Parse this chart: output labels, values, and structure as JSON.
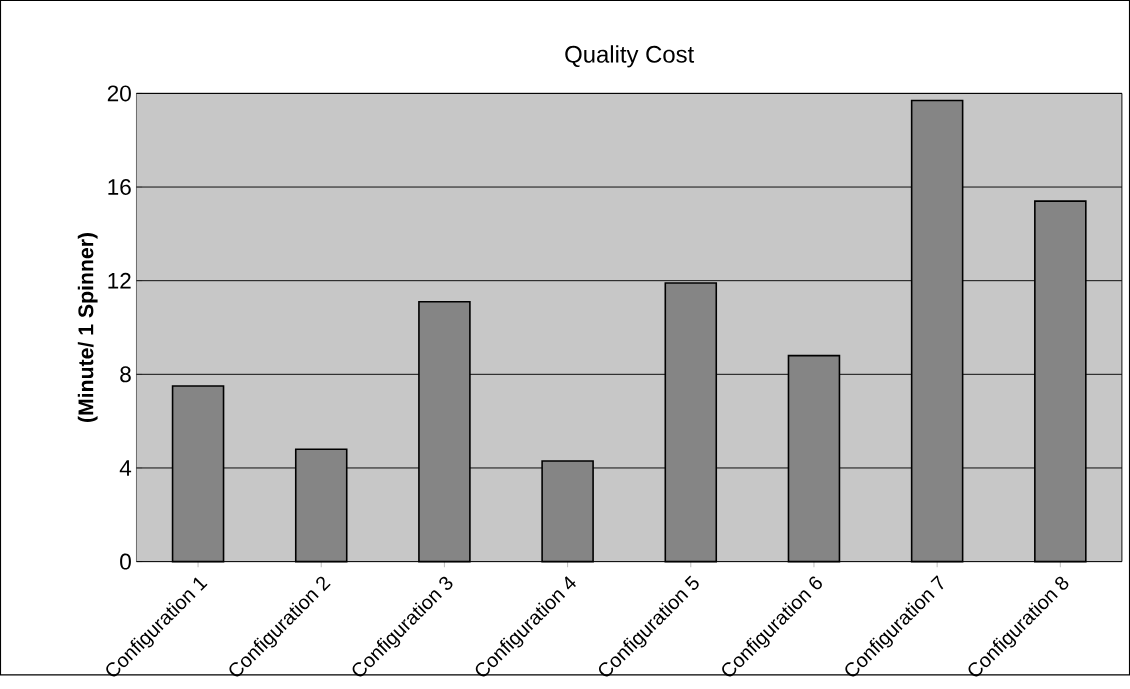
{
  "chart_data": {
    "type": "bar",
    "title": "Quality Cost",
    "ylabel": "(Minute/ 1 Spinner)",
    "categories": [
      "Configuration 1",
      "Configuration 2",
      "Configuration 3",
      "Configuration 4",
      "Configuration 5",
      "Configuration 6",
      "Configuration 7",
      "Configuration 8"
    ],
    "values": [
      7.5,
      4.8,
      11.1,
      4.3,
      11.9,
      8.8,
      19.7,
      15.4
    ],
    "color": "#858585",
    "ylim": [
      0,
      20
    ],
    "yticks": [
      0,
      4,
      8,
      12,
      16,
      20
    ],
    "grid": "y"
  }
}
